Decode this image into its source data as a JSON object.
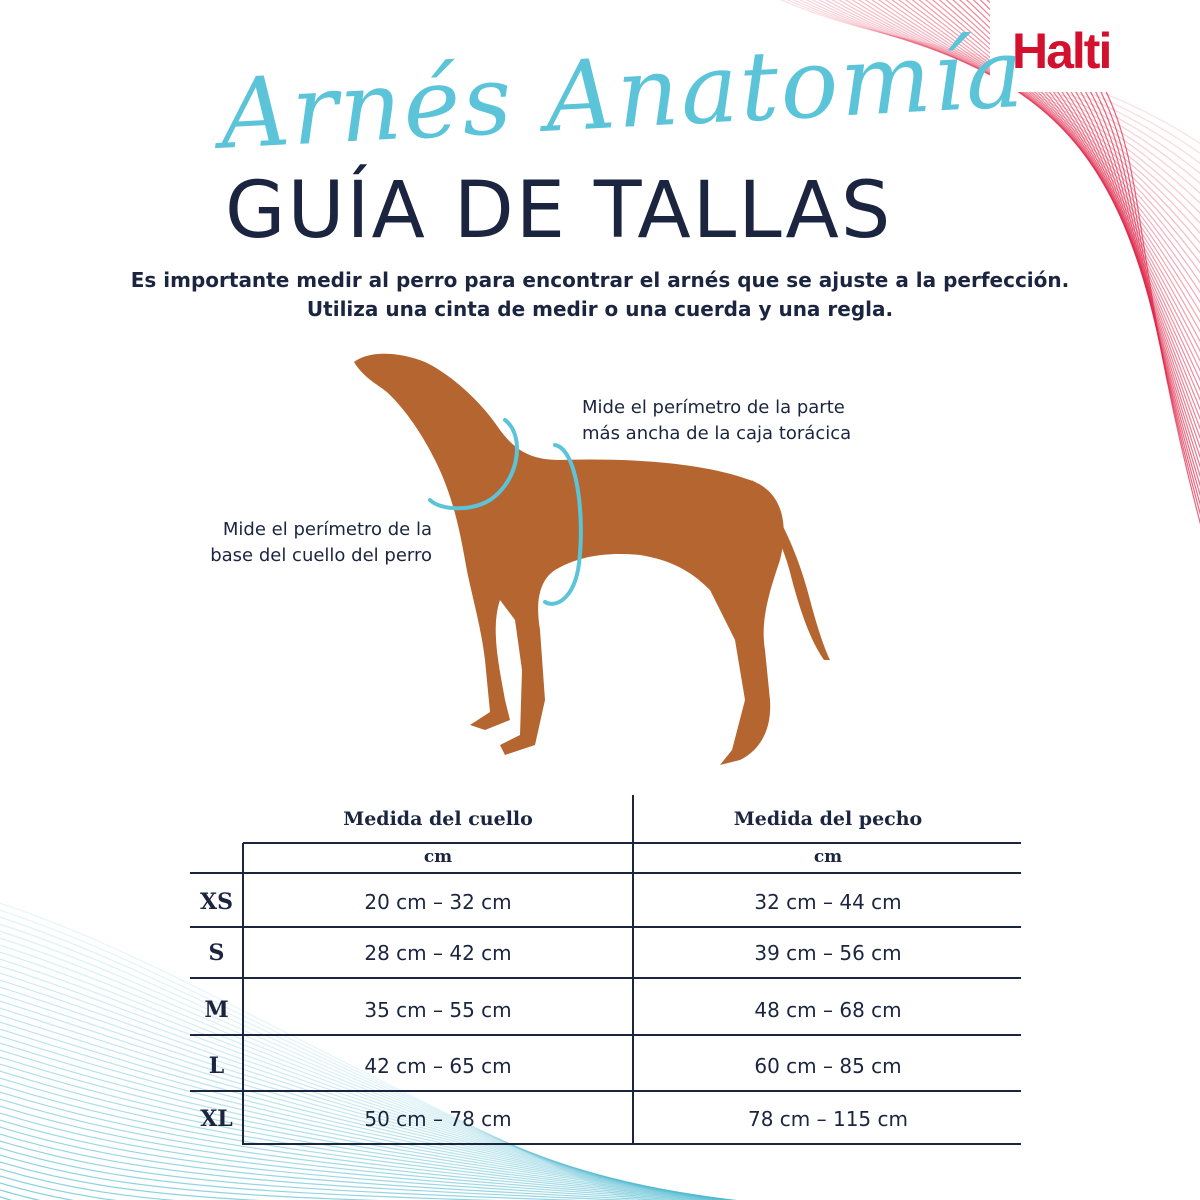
{
  "brand": {
    "logo": "Halti",
    "color": "#d4102f"
  },
  "title": {
    "script": "Arnés Anatomía",
    "main": "GUÍA DE TALLAS",
    "script_color": "#5cc4d8",
    "main_color": "#1b2540"
  },
  "intro": [
    "Es importante medir al perro para encontrar el arnés que se ajuste a la perfección.",
    "Utiliza una cinta de medir o una cuerda y una regla."
  ],
  "notes": {
    "chest": [
      "Mide el perímetro de la parte",
      "más ancha de la caja torácica"
    ],
    "neck": [
      "Mide el perímetro de la",
      "base del cuello del perro"
    ]
  },
  "table": {
    "headers": [
      "Medida del cuello",
      "Medida del pecho"
    ],
    "units": [
      "cm",
      "cm"
    ],
    "rows": [
      {
        "size": "XS",
        "neck": "20 cm – 32 cm",
        "chest": "32 cm – 44 cm"
      },
      {
        "size": "S",
        "neck": "28 cm – 42 cm",
        "chest": "39 cm – 56 cm"
      },
      {
        "size": "M",
        "neck": "35 cm – 55 cm",
        "chest": "48 cm – 68 cm"
      },
      {
        "size": "L",
        "neck": "42 cm – 65 cm",
        "chest": "60 cm – 85 cm"
      },
      {
        "size": "XL",
        "neck": "50 cm – 78 cm",
        "chest": "78 cm – 115 cm"
      }
    ]
  }
}
